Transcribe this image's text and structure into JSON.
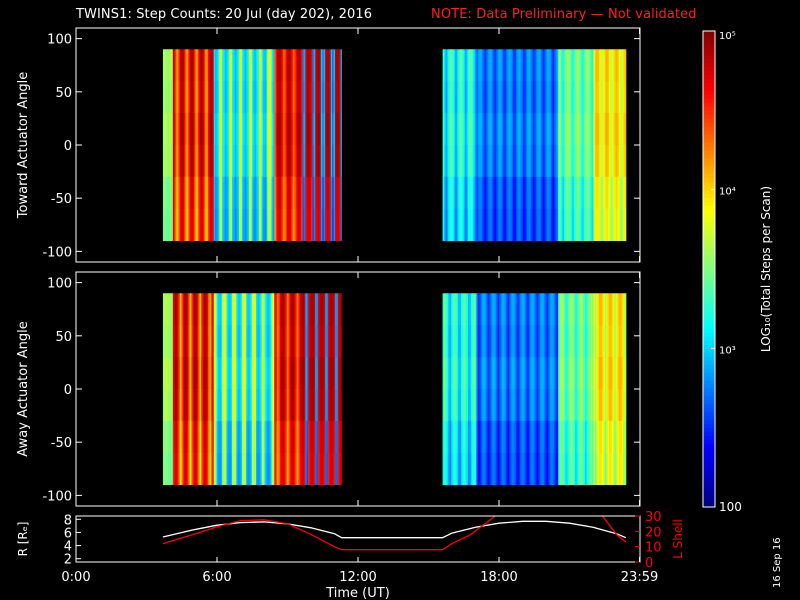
{
  "header": {
    "title": "TWINS1: Step Counts: 20 Jul (day 202), 2016",
    "note": "NOTE: Data Preliminary — Not validated"
  },
  "datestamp": "16 Sep 16",
  "chart_data": [
    {
      "type": "heatmap",
      "ylabel": "Toward Actuator Angle",
      "ylim": [
        -110,
        110
      ],
      "yticks": [
        -100,
        -50,
        0,
        50,
        100
      ],
      "xlim": [
        0,
        24
      ],
      "data_intervals_hours": [
        [
          3.7,
          11.3
        ],
        [
          15.6,
          23.4
        ]
      ],
      "y_range": [
        -90,
        90
      ],
      "grid": false
    },
    {
      "type": "heatmap",
      "ylabel": "Away Actuator Angle",
      "ylim": [
        -110,
        110
      ],
      "yticks": [
        -100,
        -50,
        0,
        50,
        100
      ],
      "xlim": [
        0,
        24
      ],
      "data_intervals_hours": [
        [
          3.7,
          11.3
        ],
        [
          15.6,
          23.4
        ]
      ],
      "y_range": [
        -90,
        90
      ],
      "grid": false
    },
    {
      "type": "line",
      "xlabel": "Time (UT)",
      "xticks": [
        "0:00",
        "6:00",
        "12:00",
        "18:00",
        "23:59"
      ],
      "xtick_hours": [
        0,
        6,
        12,
        18,
        23.98
      ],
      "ylabel_left": "R [Rₑ]",
      "yticks_left": [
        2,
        4,
        6,
        8
      ],
      "ylim_left": [
        1.5,
        8.5
      ],
      "ylabel_right": "L Shell",
      "yticks_right": [
        0,
        10,
        20,
        30
      ],
      "ylim_right": [
        0,
        30
      ],
      "series": [
        {
          "name": "R [Rₑ]",
          "axis": "left",
          "color": "#ffffff",
          "x": [
            3.7,
            5,
            6,
            7,
            8,
            9,
            10,
            11,
            11.3,
            15.6,
            16,
            17,
            18,
            19,
            20,
            21,
            22,
            23,
            23.4
          ],
          "y": [
            5.3,
            6.4,
            7.1,
            7.5,
            7.6,
            7.3,
            6.7,
            5.8,
            5.2,
            5.2,
            5.9,
            6.8,
            7.4,
            7.7,
            7.7,
            7.4,
            6.8,
            5.8,
            5.2
          ]
        },
        {
          "name": "L Shell",
          "axis": "right",
          "color": "#ff0000",
          "x": [
            3.7,
            5,
            6,
            7,
            8,
            9,
            10,
            11,
            11.3,
            15.6,
            16,
            16.8,
            17.5,
            18
          ],
          "y": [
            12,
            18,
            23,
            27,
            27.5,
            25,
            18,
            10,
            8,
            8,
            12,
            18,
            26,
            32
          ]
        },
        {
          "name": "L Shell",
          "axis": "right",
          "color": "#ff0000",
          "x": [
            22.3,
            23,
            23.4
          ],
          "y": [
            32,
            18,
            13
          ]
        }
      ]
    }
  ],
  "colorbar": {
    "label": "LOG₁₀(Total Steps per Scan)",
    "ticks": [
      "100",
      "10³",
      "10⁴",
      "10⁵"
    ],
    "tick_values": [
      100,
      1000,
      10000,
      100000
    ],
    "range": [
      100,
      100000
    ],
    "scale": "log",
    "colormap": "jet"
  },
  "colors": {
    "background": "#000000",
    "axes": "#ffffff",
    "note": "#ff2020",
    "lshell": "#ff0000"
  }
}
